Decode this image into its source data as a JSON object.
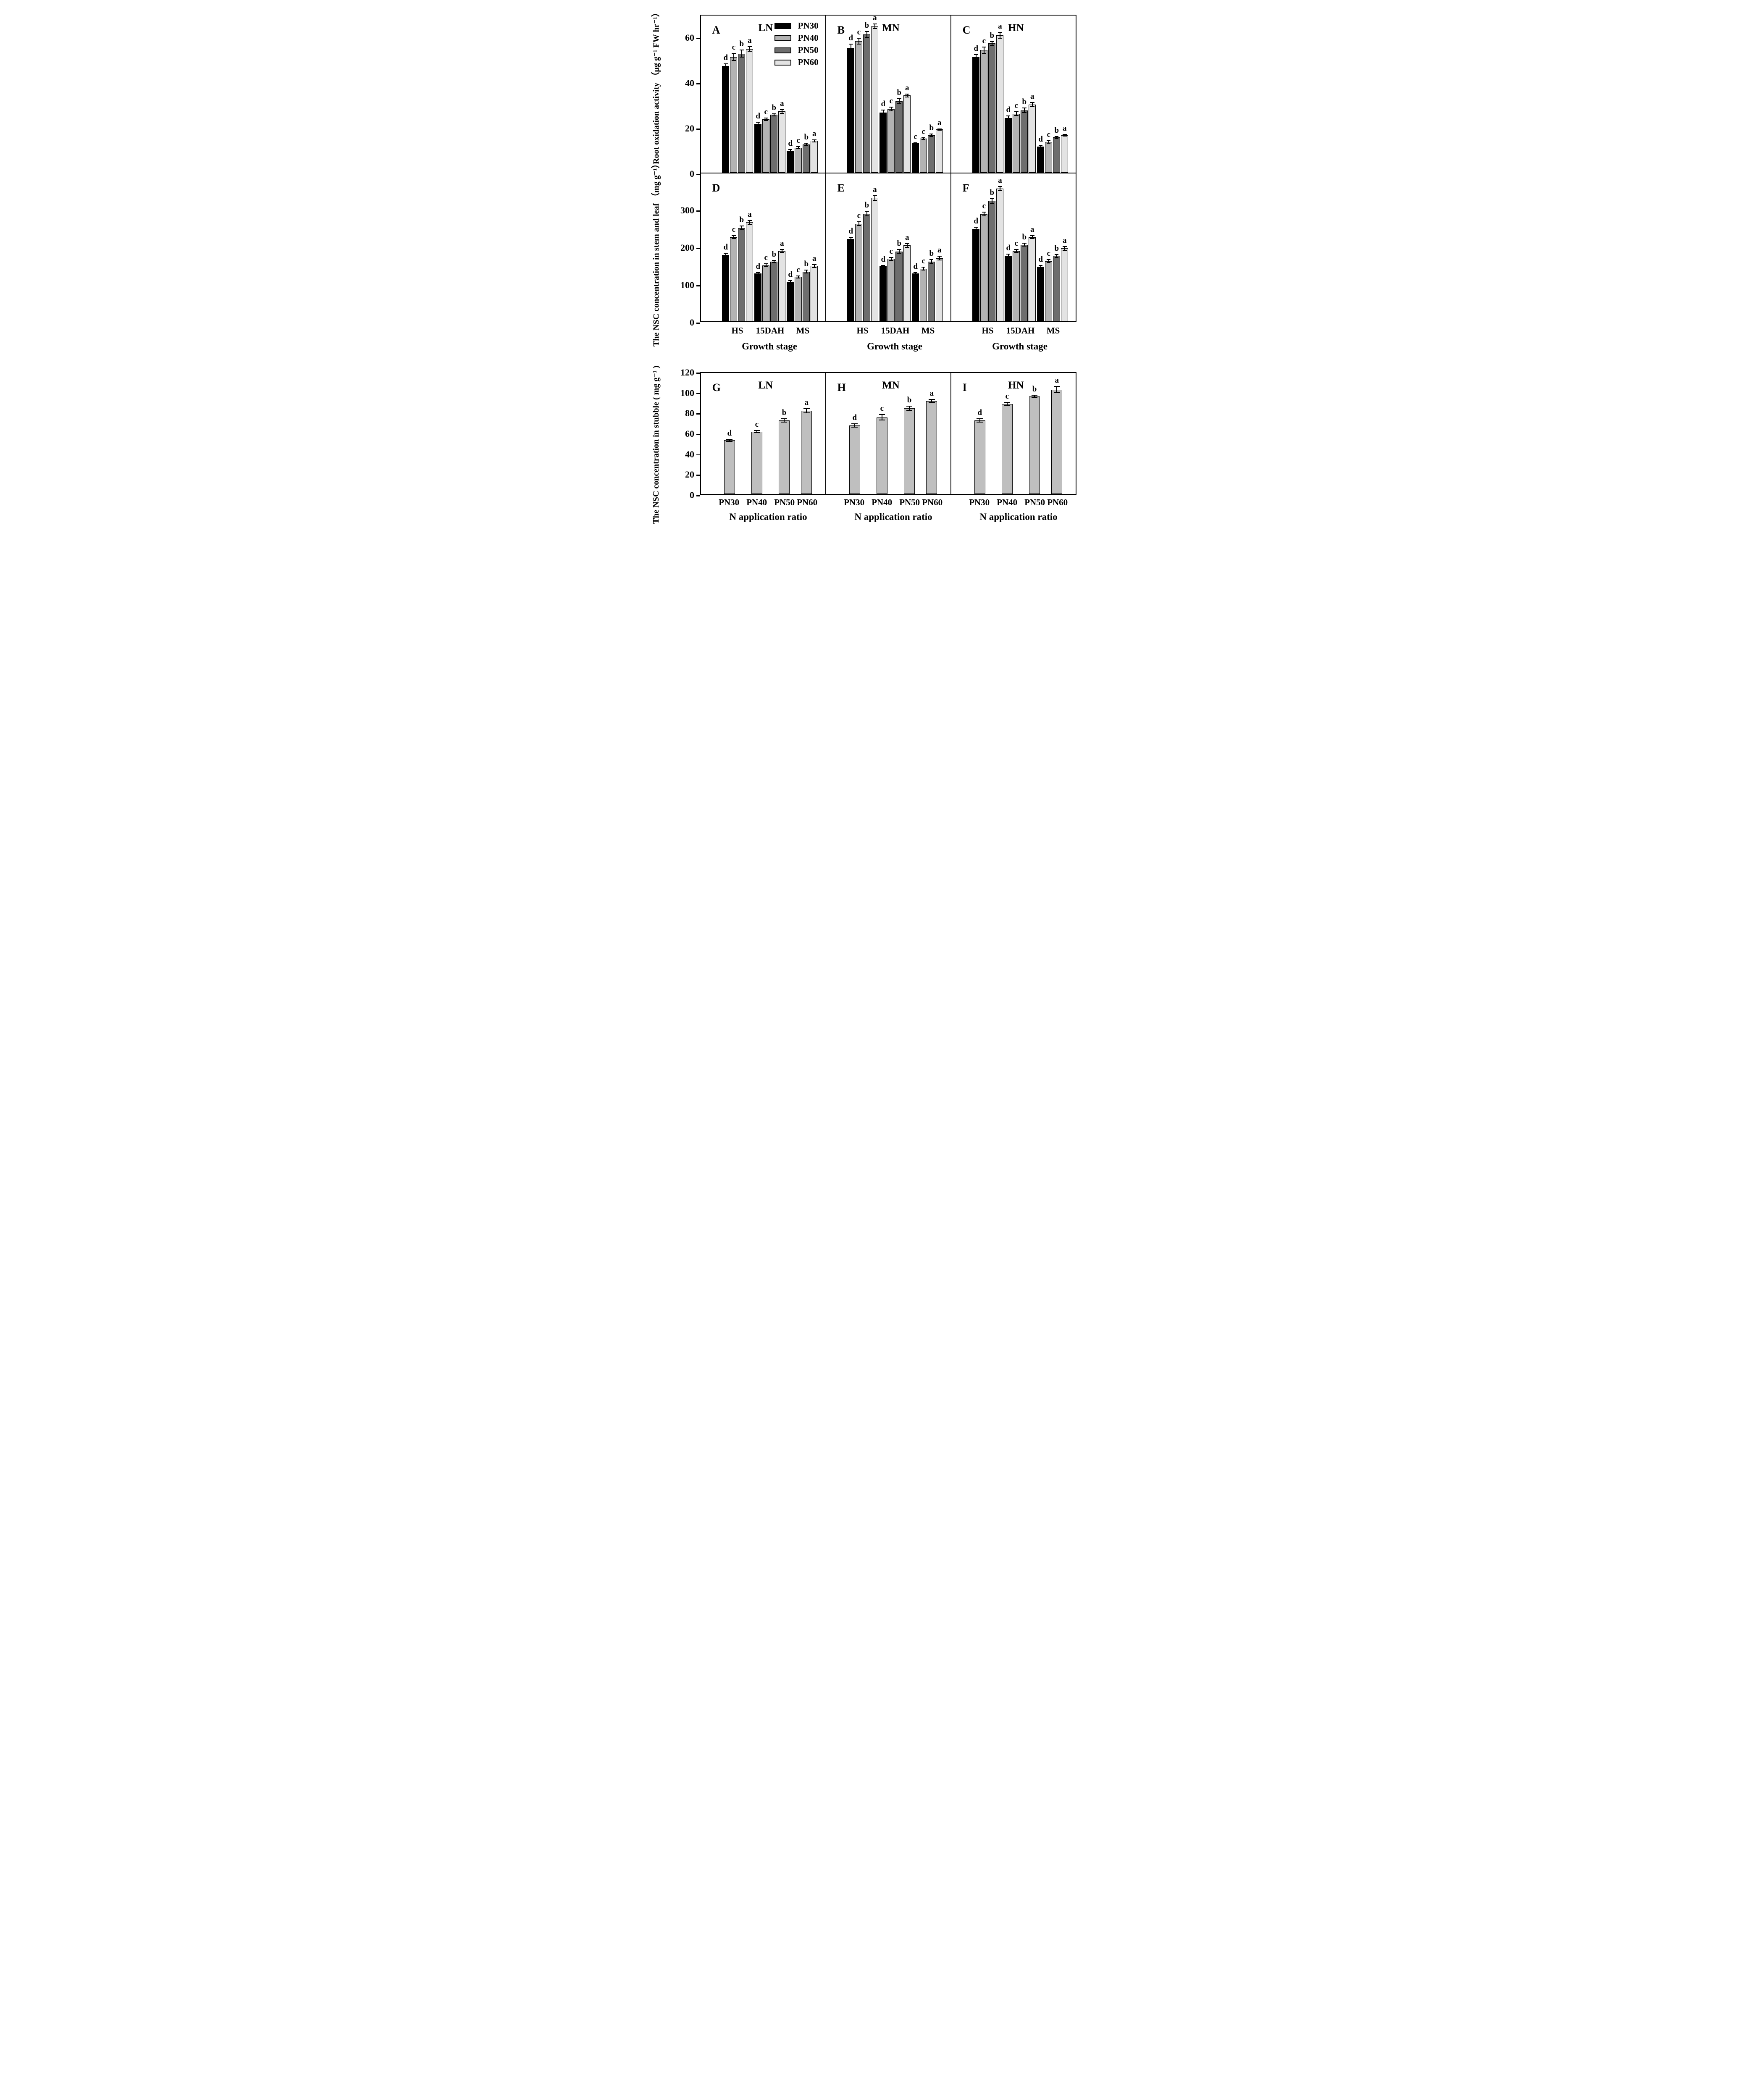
{
  "figure": {
    "y_axis": {
      "top_label": "Root oxidation activity （µg g⁻¹ FW hr⁻¹）",
      "middle_label": "The NSC concentration in stem and leaf （mg g⁻¹）",
      "bottom_label": "The NSC concentration in stubble ( mg g⁻¹ )"
    },
    "x_axis": {
      "stage_caption": "Growth stage",
      "ratio_caption": "N application ratio",
      "stage_ticks": [
        "HS",
        "15DAH",
        "MS"
      ],
      "ratio_ticks": [
        "PN30",
        "PN40",
        "PN50",
        "PN60"
      ]
    },
    "legend": {
      "items": [
        {
          "label": "PN30",
          "color": "#000000"
        },
        {
          "label": "PN40",
          "color": "#b3b3b3"
        },
        {
          "label": "PN50",
          "color": "#6e6e6e"
        },
        {
          "label": "PN60",
          "color": "#e3e3e3"
        }
      ]
    },
    "colors": {
      "row3_bar": "#bfbfbf",
      "axis": "#000000",
      "background": "#ffffff"
    }
  },
  "chart_data": [
    {
      "id": "A",
      "type": "grouped-bar",
      "row": 1,
      "col": 0,
      "condition": "LN",
      "ylim": [
        0,
        70
      ],
      "yticks": [
        0,
        20,
        40,
        60
      ],
      "series_names": [
        "PN30",
        "PN40",
        "PN50",
        "PN60"
      ],
      "groups": [
        {
          "category": "HS",
          "values": [
            47,
            51,
            52.5,
            54.5
          ],
          "errors": [
            1.2,
            1.8,
            1.8,
            1.2
          ],
          "letters": [
            "d",
            "c",
            "b",
            "a"
          ]
        },
        {
          "category": "15DAH",
          "values": [
            21.5,
            23.5,
            25.5,
            27
          ],
          "errors": [
            1.0,
            0.8,
            0.6,
            1.0
          ],
          "letters": [
            "d",
            "c",
            "b",
            "a"
          ]
        },
        {
          "category": "MS",
          "values": [
            9.5,
            11,
            12.5,
            14
          ],
          "errors": [
            0.8,
            0.6,
            0.6,
            0.6
          ],
          "letters": [
            "d",
            "c",
            "b",
            "a"
          ]
        }
      ]
    },
    {
      "id": "B",
      "type": "grouped-bar",
      "row": 1,
      "col": 1,
      "condition": "MN",
      "ylim": [
        0,
        70
      ],
      "yticks": [
        0,
        20,
        40,
        60
      ],
      "series_names": [
        "PN30",
        "PN40",
        "PN50",
        "PN60"
      ],
      "groups": [
        {
          "category": "HS",
          "values": [
            55,
            58,
            61,
            64.5
          ],
          "errors": [
            1.8,
            1.5,
            1.5,
            1.2
          ],
          "letters": [
            "d",
            "c",
            "b",
            "a"
          ]
        },
        {
          "category": "15DAH",
          "values": [
            26.5,
            28,
            31.5,
            34
          ],
          "errors": [
            1.2,
            1.0,
            1.2,
            0.8
          ],
          "letters": [
            "d",
            "c",
            "b",
            "a"
          ]
        },
        {
          "category": "MS",
          "values": [
            13,
            15,
            16.5,
            19
          ],
          "errors": [
            0.4,
            0.5,
            0.8,
            0.5
          ],
          "letters": [
            "c",
            "c",
            "b",
            "a"
          ]
        }
      ]
    },
    {
      "id": "C",
      "type": "grouped-bar",
      "row": 1,
      "col": 2,
      "condition": "HN",
      "ylim": [
        0,
        70
      ],
      "yticks": [
        0,
        20,
        40,
        60
      ],
      "series_names": [
        "PN30",
        "PN40",
        "PN50",
        "PN60"
      ],
      "groups": [
        {
          "category": "HS",
          "values": [
            51,
            54,
            57,
            60.5
          ],
          "errors": [
            1.2,
            1.5,
            1.0,
            1.5
          ],
          "letters": [
            "d",
            "c",
            "b",
            "a"
          ]
        },
        {
          "category": "15DAH",
          "values": [
            24,
            26,
            27.5,
            30
          ],
          "errors": [
            1.2,
            1.0,
            1.2,
            1.2
          ],
          "letters": [
            "d",
            "c",
            "b",
            "a"
          ]
        },
        {
          "category": "MS",
          "values": [
            11.5,
            13.5,
            15.5,
            16.5
          ],
          "errors": [
            0.8,
            0.8,
            0.6,
            0.6
          ],
          "letters": [
            "d",
            "c",
            "b",
            "a"
          ]
        }
      ]
    },
    {
      "id": "D",
      "type": "grouped-bar",
      "row": 2,
      "col": 0,
      "condition": null,
      "ylim": [
        0,
        400
      ],
      "yticks": [
        0,
        100,
        200,
        300
      ],
      "series_names": [
        "PN30",
        "PN40",
        "PN50",
        "PN60"
      ],
      "groups": [
        {
          "category": "HS",
          "values": [
            178,
            225,
            250,
            265
          ],
          "errors": [
            5,
            5,
            6,
            6
          ],
          "letters": [
            "d",
            "c",
            "b",
            "a"
          ]
        },
        {
          "category": "15DAH",
          "values": [
            128,
            150,
            160,
            188
          ],
          "errors": [
            4,
            5,
            4,
            5
          ],
          "letters": [
            "d",
            "c",
            "b",
            "a"
          ]
        },
        {
          "category": "MS",
          "values": [
            106,
            119,
            133,
            148
          ],
          "errors": [
            4,
            4,
            5,
            5
          ],
          "letters": [
            "d",
            "c",
            "b",
            "a"
          ]
        }
      ]
    },
    {
      "id": "E",
      "type": "grouped-bar",
      "row": 2,
      "col": 1,
      "condition": null,
      "ylim": [
        0,
        400
      ],
      "yticks": [
        0,
        100,
        200,
        300
      ],
      "series_names": [
        "PN30",
        "PN40",
        "PN50",
        "PN60"
      ],
      "groups": [
        {
          "category": "HS",
          "values": [
            220,
            261,
            288,
            330
          ],
          "errors": [
            6,
            6,
            7,
            7
          ],
          "letters": [
            "d",
            "c",
            "b",
            "a"
          ]
        },
        {
          "category": "15DAH",
          "values": [
            147,
            167,
            187,
            203
          ],
          "errors": [
            4,
            5,
            6,
            6
          ],
          "letters": [
            "d",
            "c",
            "b",
            "a"
          ]
        },
        {
          "category": "MS",
          "values": [
            128,
            141,
            160,
            169
          ],
          "errors": [
            4,
            5,
            6,
            6
          ],
          "letters": [
            "d",
            "c",
            "b",
            "a"
          ]
        }
      ]
    },
    {
      "id": "F",
      "type": "grouped-bar",
      "row": 2,
      "col": 2,
      "condition": null,
      "ylim": [
        0,
        400
      ],
      "yticks": [
        0,
        100,
        200,
        300
      ],
      "series_names": [
        "PN30",
        "PN40",
        "PN50",
        "PN60"
      ],
      "groups": [
        {
          "category": "HS",
          "values": [
            247,
            287,
            322,
            355
          ],
          "errors": [
            6,
            6,
            7,
            7
          ],
          "letters": [
            "d",
            "c",
            "b",
            "a"
          ]
        },
        {
          "category": "15DAH",
          "values": [
            175,
            188,
            205,
            225
          ],
          "errors": [
            6,
            5,
            5,
            5
          ],
          "letters": [
            "d",
            "c",
            "b",
            "a"
          ]
        },
        {
          "category": "MS",
          "values": [
            146,
            161,
            175,
            195
          ],
          "errors": [
            5,
            5,
            5,
            6
          ],
          "letters": [
            "d",
            "c",
            "b",
            "a"
          ]
        }
      ]
    },
    {
      "id": "G",
      "type": "bar",
      "row": 3,
      "col": 0,
      "condition": "LN",
      "ylim": [
        0,
        120
      ],
      "yticks": [
        0,
        20,
        40,
        60,
        80,
        100,
        120
      ],
      "categories": [
        "PN30",
        "PN40",
        "PN50",
        "PN60"
      ],
      "values": [
        52.5,
        61,
        72,
        81.5
      ],
      "errors": [
        1.5,
        1.5,
        2,
        2.5
      ],
      "letters": [
        "d",
        "c",
        "b",
        "a"
      ]
    },
    {
      "id": "H",
      "type": "bar",
      "row": 3,
      "col": 1,
      "condition": "MN",
      "ylim": [
        0,
        120
      ],
      "yticks": [
        0,
        20,
        40,
        60,
        80,
        100,
        120
      ],
      "categories": [
        "PN30",
        "PN40",
        "PN50",
        "PN60"
      ],
      "values": [
        67,
        75,
        84,
        91
      ],
      "errors": [
        2,
        3,
        2.5,
        2
      ],
      "letters": [
        "d",
        "c",
        "b",
        "a"
      ]
    },
    {
      "id": "I",
      "type": "bar",
      "row": 3,
      "col": 2,
      "condition": "HN",
      "ylim": [
        0,
        120
      ],
      "yticks": [
        0,
        20,
        40,
        60,
        80,
        100,
        120
      ],
      "categories": [
        "PN30",
        "PN40",
        "PN50",
        "PN60"
      ],
      "values": [
        72,
        88,
        95.5,
        102
      ],
      "errors": [
        2,
        2,
        1.5,
        3.5
      ],
      "letters": [
        "d",
        "c",
        "b",
        "a"
      ]
    }
  ]
}
